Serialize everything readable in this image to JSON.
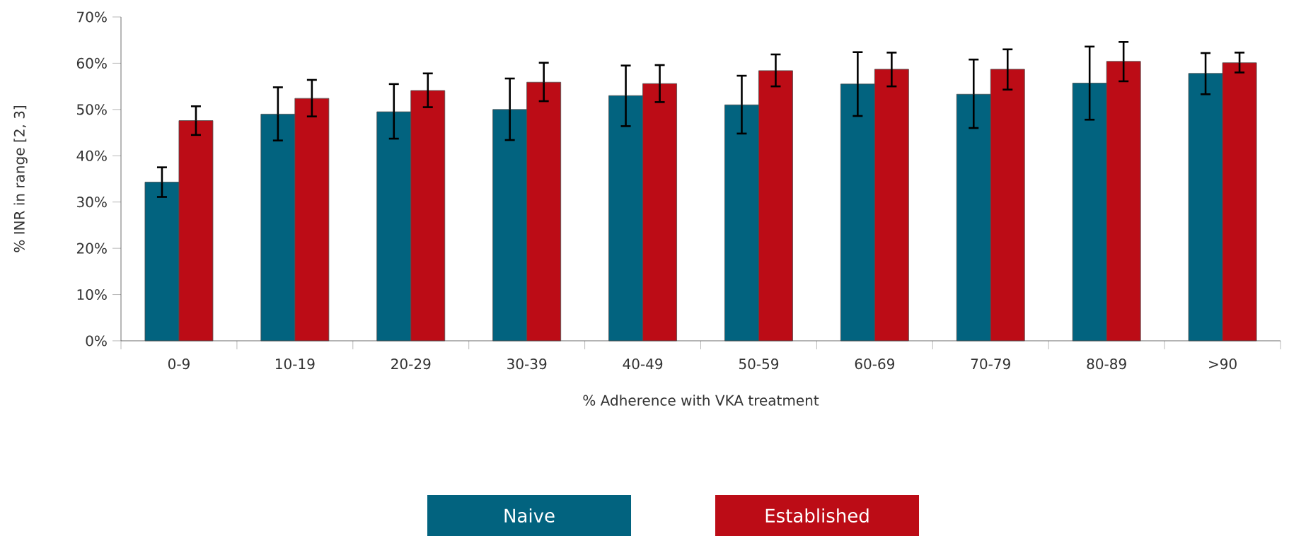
{
  "chart_data": {
    "type": "bar",
    "xlabel": "% Adherence with VKA treatment",
    "ylabel": "% INR in range [2, 3]",
    "categories": [
      "0-9",
      "10-19",
      "20-29",
      "30-39",
      "40-49",
      "50-59",
      "60-69",
      "70-79",
      "80-89",
      ">90"
    ],
    "series": [
      {
        "name": "Naive",
        "color": "#02637f",
        "values": [
          34.3,
          49,
          49.5,
          50,
          53,
          51,
          55.5,
          53.3,
          55.7,
          57.8
        ],
        "errors": [
          [
            31.1,
            37.5
          ],
          [
            43.3,
            54.8
          ],
          [
            43.7,
            55.5
          ],
          [
            43.4,
            56.7
          ],
          [
            46.4,
            59.5
          ],
          [
            44.8,
            57.3
          ],
          [
            48.6,
            62.4
          ],
          [
            46,
            60.8
          ],
          [
            47.8,
            63.6
          ],
          [
            53.3,
            62.2
          ]
        ]
      },
      {
        "name": "Established",
        "color": "#bc0c16",
        "values": [
          47.6,
          52.4,
          54.1,
          55.9,
          55.6,
          58.4,
          58.7,
          58.7,
          60.4,
          60.1
        ],
        "errors": [
          [
            44.5,
            50.7
          ],
          [
            48.5,
            56.4
          ],
          [
            50.5,
            57.8
          ],
          [
            51.8,
            60.1
          ],
          [
            51.6,
            59.6
          ],
          [
            55,
            61.9
          ],
          [
            55,
            62.3
          ],
          [
            54.3,
            63
          ],
          [
            56.1,
            64.6
          ],
          [
            58,
            62.3
          ]
        ]
      }
    ],
    "ylim": [
      0,
      70
    ],
    "yticks": [
      {
        "value": 0,
        "label": "0%"
      },
      {
        "value": 10,
        "label": "10%"
      },
      {
        "value": 20,
        "label": "20%"
      },
      {
        "value": 30,
        "label": "30%"
      },
      {
        "value": 40,
        "label": "40%"
      },
      {
        "value": 50,
        "label": "50%"
      },
      {
        "value": 60,
        "label": "60%"
      },
      {
        "value": 70,
        "label": "70%"
      }
    ],
    "legend": "bottom"
  }
}
